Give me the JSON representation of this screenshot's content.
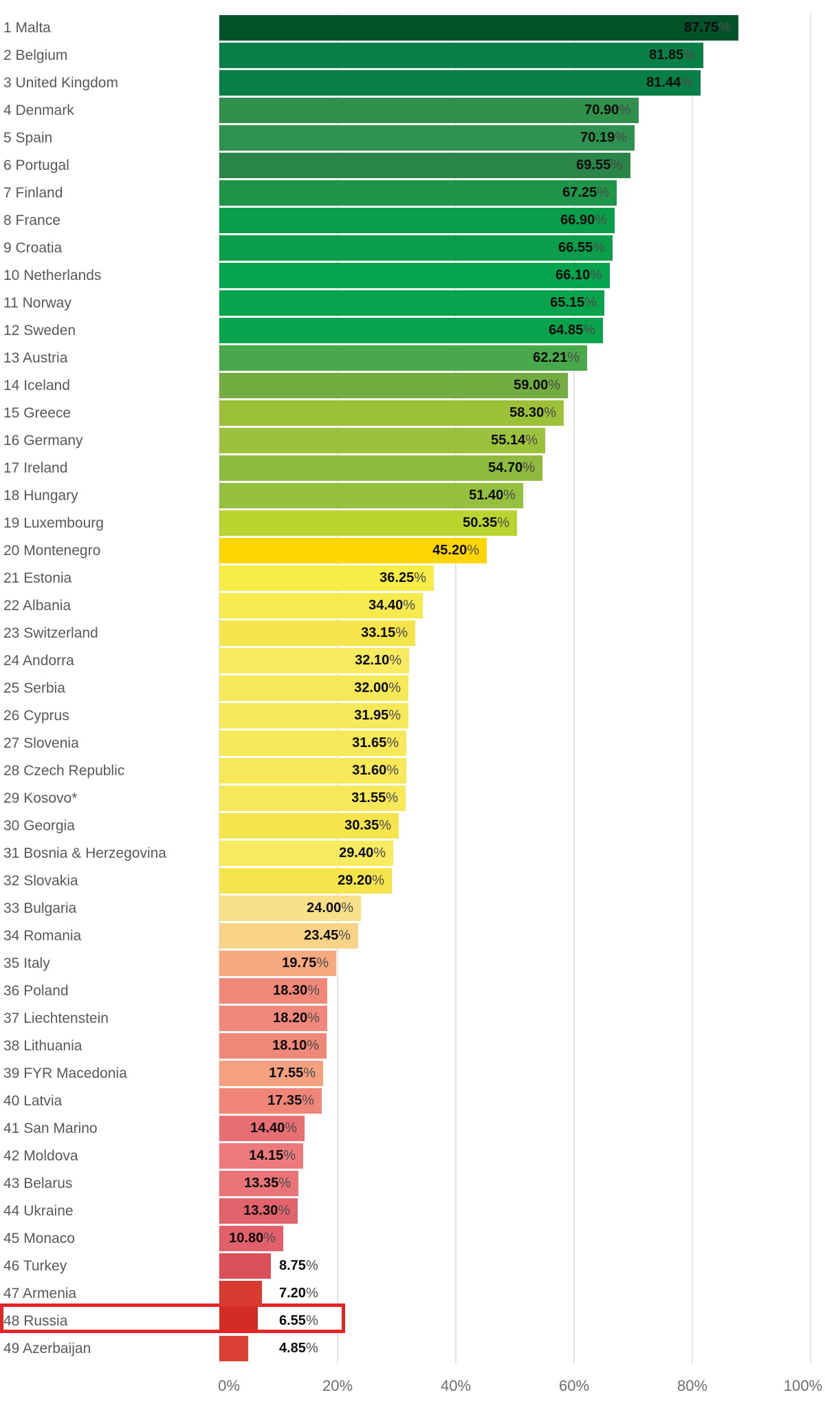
{
  "chart_data": {
    "type": "bar",
    "orientation": "horizontal",
    "title": "",
    "xlabel": "",
    "ylabel": "",
    "unit": "%",
    "grid": true,
    "x_axis": {
      "range": [
        0,
        100
      ],
      "ticks": [
        {
          "label": "0%",
          "pct": 0
        },
        {
          "label": "20%",
          "pct": 20
        },
        {
          "label": "40%",
          "pct": 40
        },
        {
          "label": "60%",
          "pct": 60
        },
        {
          "label": "80%",
          "pct": 80
        },
        {
          "label": "100%",
          "pct": 100
        }
      ]
    },
    "highlight": {
      "rank": 48,
      "country": "Russia",
      "border_color": "#e42528",
      "fill": "#ffffff"
    },
    "rows": [
      {
        "rank": 1,
        "country": "Malta",
        "value": 87.75,
        "display": "87.75",
        "color": "#03522a",
        "label_position": "inside"
      },
      {
        "rank": 2,
        "country": "Belgium",
        "value": 81.85,
        "display": "81.85",
        "color": "#087f46",
        "label_position": "inside"
      },
      {
        "rank": 3,
        "country": "United Kingdom",
        "value": 81.44,
        "display": "81.44",
        "color": "#087f46",
        "label_position": "inside"
      },
      {
        "rank": 4,
        "country": "Denmark",
        "value": 70.9,
        "display": "70.90",
        "color": "#2f8f4b",
        "label_position": "inside"
      },
      {
        "rank": 5,
        "country": "Spain",
        "value": 70.19,
        "display": "70.19",
        "color": "#2e914f",
        "label_position": "inside"
      },
      {
        "rank": 6,
        "country": "Portugal",
        "value": 69.55,
        "display": "69.55",
        "color": "#2a8648",
        "label_position": "inside"
      },
      {
        "rank": 7,
        "country": "Finland",
        "value": 67.25,
        "display": "67.25",
        "color": "#1f9549",
        "label_position": "inside"
      },
      {
        "rank": 8,
        "country": "France",
        "value": 66.9,
        "display": "66.90",
        "color": "#0a9e4b",
        "label_position": "inside"
      },
      {
        "rank": 9,
        "country": "Croatia",
        "value": 66.55,
        "display": "66.55",
        "color": "#0a9e4b",
        "label_position": "inside"
      },
      {
        "rank": 10,
        "country": "Netherlands",
        "value": 66.1,
        "display": "66.10",
        "color": "#05a44e",
        "label_position": "inside"
      },
      {
        "rank": 11,
        "country": "Norway",
        "value": 65.15,
        "display": "65.15",
        "color": "#09a24d",
        "label_position": "inside"
      },
      {
        "rank": 12,
        "country": "Sweden",
        "value": 64.85,
        "display": "64.85",
        "color": "#09a24d",
        "label_position": "inside"
      },
      {
        "rank": 13,
        "country": "Austria",
        "value": 62.21,
        "display": "62.21",
        "color": "#4aa84c",
        "label_position": "inside"
      },
      {
        "rank": 14,
        "country": "Iceland",
        "value": 59.0,
        "display": "59.00",
        "color": "#73ad41",
        "label_position": "inside"
      },
      {
        "rank": 15,
        "country": "Greece",
        "value": 58.3,
        "display": "58.30",
        "color": "#9cc138",
        "label_position": "inside"
      },
      {
        "rank": 16,
        "country": "Germany",
        "value": 55.14,
        "display": "55.14",
        "color": "#9cc13c",
        "label_position": "inside"
      },
      {
        "rank": 17,
        "country": "Ireland",
        "value": 54.7,
        "display": "54.70",
        "color": "#8ebb3d",
        "label_position": "inside"
      },
      {
        "rank": 18,
        "country": "Hungary",
        "value": 51.4,
        "display": "51.40",
        "color": "#95bf3e",
        "label_position": "inside"
      },
      {
        "rank": 19,
        "country": "Luxembourg",
        "value": 50.35,
        "display": "50.35",
        "color": "#bbd32f",
        "label_position": "inside"
      },
      {
        "rank": 20,
        "country": "Montenegro",
        "value": 45.2,
        "display": "45.20",
        "color": "#ffd500",
        "label_position": "inside"
      },
      {
        "rank": 21,
        "country": "Estonia",
        "value": 36.25,
        "display": "36.25",
        "color": "#f8ec47",
        "label_position": "inside"
      },
      {
        "rank": 22,
        "country": "Albania",
        "value": 34.4,
        "display": "34.40",
        "color": "#f7ea4e",
        "label_position": "inside"
      },
      {
        "rank": 23,
        "country": "Switzerland",
        "value": 33.15,
        "display": "33.15",
        "color": "#f5e44c",
        "label_position": "inside"
      },
      {
        "rank": 24,
        "country": "Andorra",
        "value": 32.1,
        "display": "32.10",
        "color": "#f8eb61",
        "label_position": "inside"
      },
      {
        "rank": 25,
        "country": "Serbia",
        "value": 32.0,
        "display": "32.00",
        "color": "#f7e85a",
        "label_position": "inside"
      },
      {
        "rank": 26,
        "country": "Cyprus",
        "value": 31.95,
        "display": "31.95",
        "color": "#f7e85a",
        "label_position": "inside"
      },
      {
        "rank": 27,
        "country": "Slovenia",
        "value": 31.65,
        "display": "31.65",
        "color": "#f7e85a",
        "label_position": "inside"
      },
      {
        "rank": 28,
        "country": "Czech Republic",
        "value": 31.6,
        "display": "31.60",
        "color": "#f7e85a",
        "label_position": "inside"
      },
      {
        "rank": 29,
        "country": "Kosovo*",
        "value": 31.55,
        "display": "31.55",
        "color": "#f7e85a",
        "label_position": "inside"
      },
      {
        "rank": 30,
        "country": "Georgia",
        "value": 30.35,
        "display": "30.35",
        "color": "#f5e44c",
        "label_position": "inside"
      },
      {
        "rank": 31,
        "country": "Bosnia & Herzegovina",
        "value": 29.4,
        "display": "29.40",
        "color": "#f8eb61",
        "label_position": "inside"
      },
      {
        "rank": 32,
        "country": "Slovakia",
        "value": 29.2,
        "display": "29.20",
        "color": "#f5e44c",
        "label_position": "inside"
      },
      {
        "rank": 33,
        "country": "Bulgaria",
        "value": 24.0,
        "display": "24.00",
        "color": "#f8e08b",
        "label_position": "inside"
      },
      {
        "rank": 34,
        "country": "Romania",
        "value": 23.45,
        "display": "23.45",
        "color": "#f9d488",
        "label_position": "inside"
      },
      {
        "rank": 35,
        "country": "Italy",
        "value": 19.75,
        "display": "19.75",
        "color": "#f9a97f",
        "label_position": "inside"
      },
      {
        "rank": 36,
        "country": "Poland",
        "value": 18.3,
        "display": "18.30",
        "color": "#f0887a",
        "label_position": "inside"
      },
      {
        "rank": 37,
        "country": "Liechtenstein",
        "value": 18.2,
        "display": "18.20",
        "color": "#f0897b",
        "label_position": "inside"
      },
      {
        "rank": 38,
        "country": "Lithuania",
        "value": 18.1,
        "display": "18.10",
        "color": "#f0887a",
        "label_position": "inside"
      },
      {
        "rank": 39,
        "country": "FYR Macedonia",
        "value": 17.55,
        "display": "17.55",
        "color": "#f5a07f",
        "label_position": "inside"
      },
      {
        "rank": 40,
        "country": "Latvia",
        "value": 17.35,
        "display": "17.35",
        "color": "#ef8478",
        "label_position": "inside"
      },
      {
        "rank": 41,
        "country": "San Marino",
        "value": 14.4,
        "display": "14.40",
        "color": "#e86f74",
        "label_position": "inside"
      },
      {
        "rank": 42,
        "country": "Moldova",
        "value": 14.15,
        "display": "14.15",
        "color": "#ec7a7c",
        "label_position": "inside"
      },
      {
        "rank": 43,
        "country": "Belarus",
        "value": 13.35,
        "display": "13.35",
        "color": "#e97477",
        "label_position": "inside"
      },
      {
        "rank": 44,
        "country": "Ukraine",
        "value": 13.3,
        "display": "13.30",
        "color": "#e3636d",
        "label_position": "inside"
      },
      {
        "rank": 45,
        "country": "Monaco",
        "value": 10.8,
        "display": "10.80",
        "color": "#e2606c",
        "label_position": "inside"
      },
      {
        "rank": 46,
        "country": "Turkey",
        "value": 8.75,
        "display": "8.75",
        "color": "#dc505b",
        "label_position": "outside"
      },
      {
        "rank": 47,
        "country": "Armenia",
        "value": 7.2,
        "display": "7.20",
        "color": "#d93a30",
        "label_position": "outside"
      },
      {
        "rank": 48,
        "country": "Russia",
        "value": 6.55,
        "display": "6.55",
        "color": "#d22c27",
        "label_position": "outside"
      },
      {
        "rank": 49,
        "country": "Azerbaijan",
        "value": 4.85,
        "display": "4.85",
        "color": "#da4033",
        "label_position": "outside"
      }
    ]
  }
}
